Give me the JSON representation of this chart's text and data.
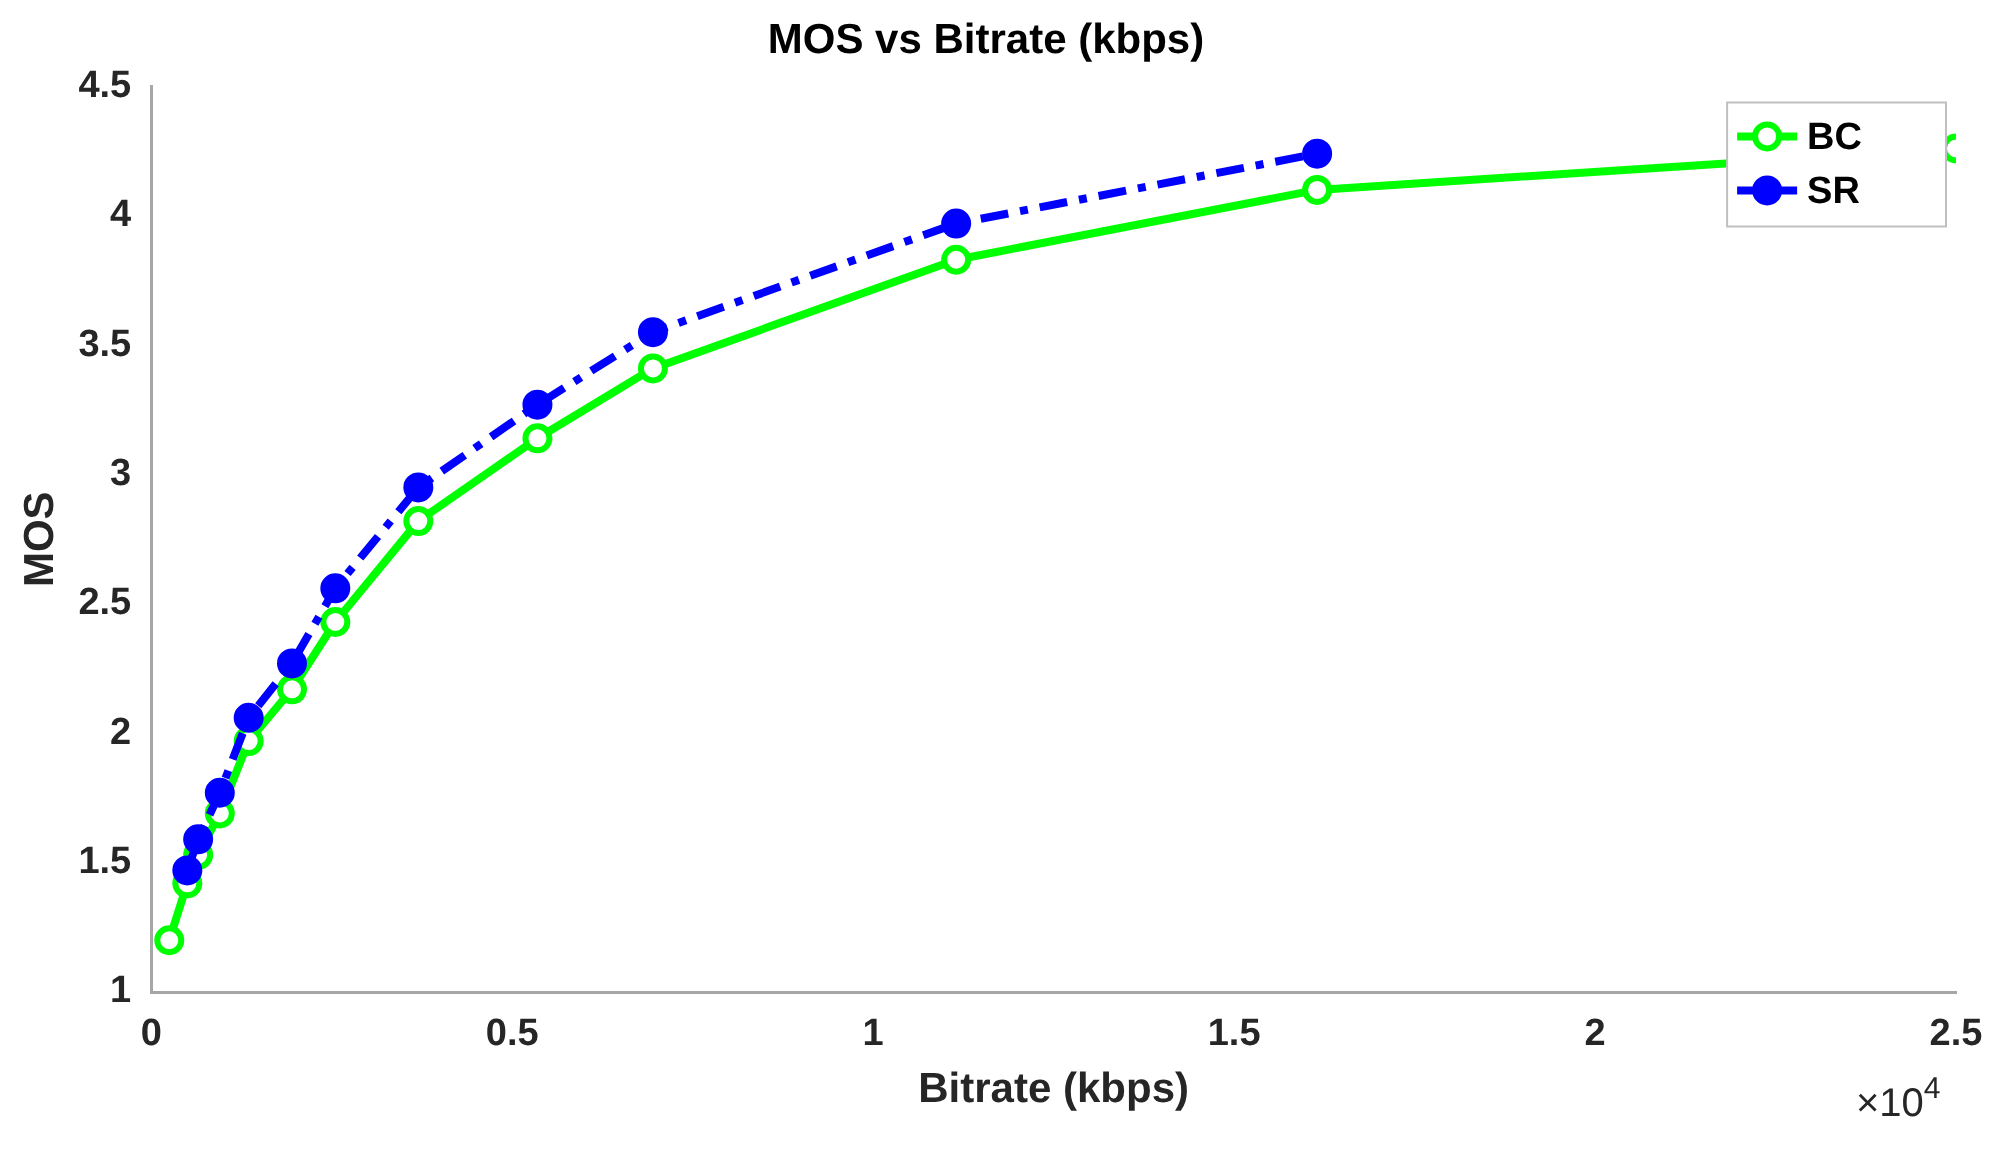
{
  "chart_data": {
    "type": "line",
    "title": "MOS vs Bitrate (kbps)",
    "xlabel": "Bitrate (kbps)",
    "ylabel": "MOS",
    "xlim": [
      0,
      2.5
    ],
    "xticks": [
      0,
      0.5,
      1,
      1.5,
      2,
      2.5
    ],
    "ylim": [
      1,
      4.5
    ],
    "yticks": [
      1,
      1.5,
      2,
      2.5,
      3,
      3.5,
      4,
      4.5
    ],
    "annotations": [
      "×10$^{4}$"
    ],
    "legend": "top right",
    "grid": false,
    "marker": "circle",
    "series": [
      {
        "name": "BC",
        "color": "#00ff00",
        "line_style": "solid",
        "x": [
          0.025,
          0.05,
          0.065,
          0.095,
          0.135,
          0.195,
          0.255,
          0.37,
          0.535,
          0.695,
          1.115,
          1.615,
          2.5
        ],
        "values": [
          1.2,
          1.42,
          1.53,
          1.69,
          1.97,
          2.17,
          2.43,
          2.82,
          3.14,
          3.41,
          3.83,
          4.1,
          4.26
        ]
      },
      {
        "name": "SR",
        "color": "#0000ff",
        "line_style": "dashed",
        "x": [
          0.05,
          0.065,
          0.095,
          0.135,
          0.195,
          0.255,
          0.37,
          0.535,
          0.695,
          1.115,
          1.615
        ],
        "values": [
          1.47,
          1.59,
          1.77,
          2.06,
          2.27,
          2.56,
          2.95,
          3.27,
          3.55,
          3.97,
          4.24
        ]
      }
    ]
  }
}
